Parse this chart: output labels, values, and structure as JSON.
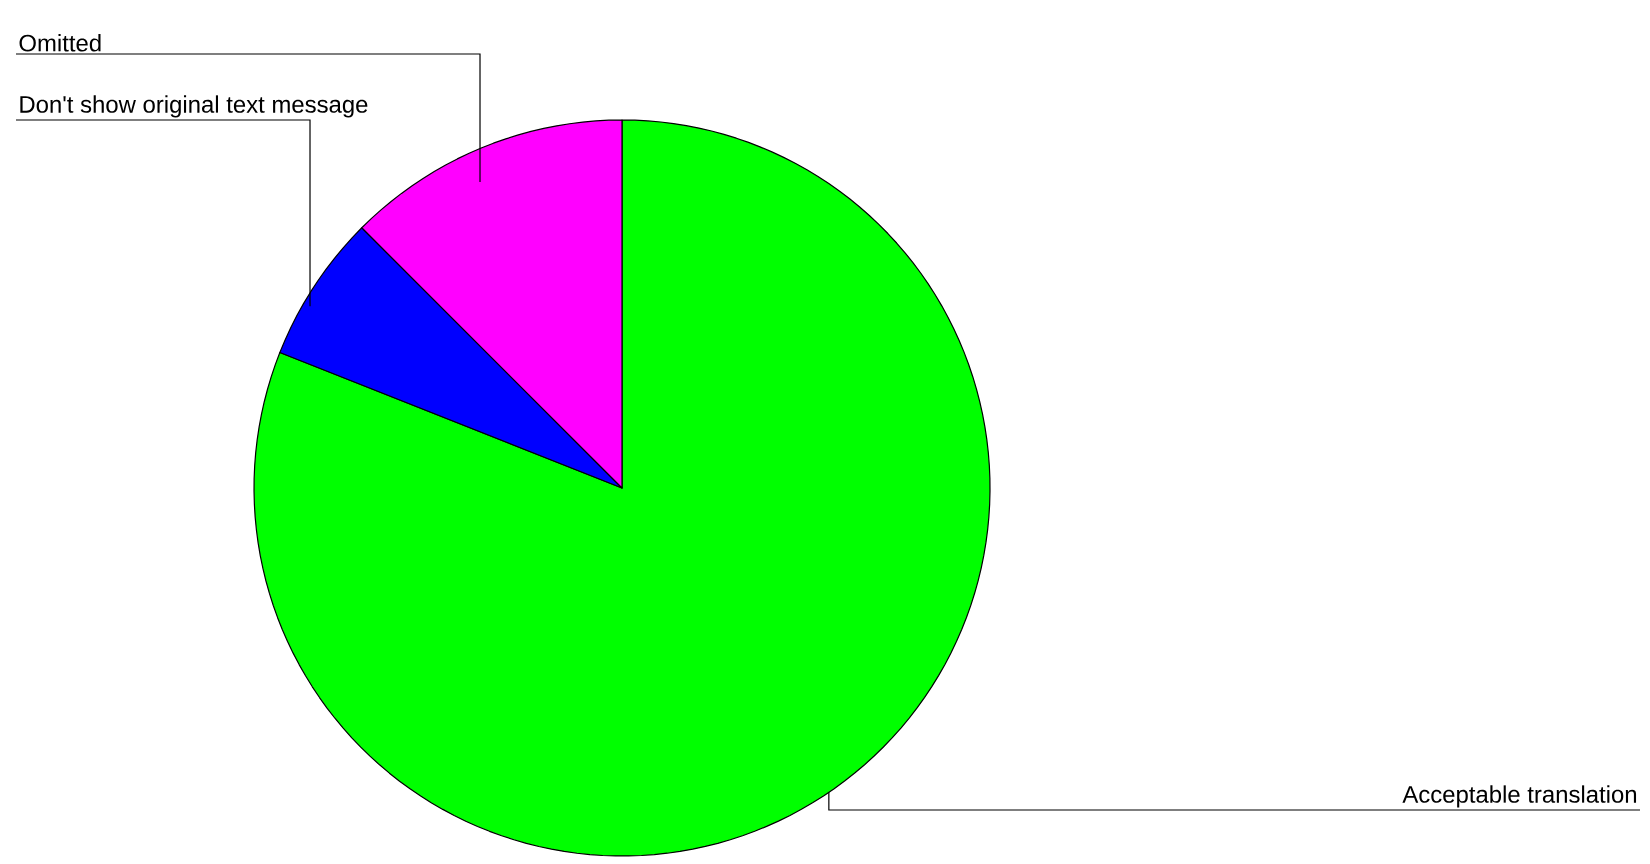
{
  "chart_data": {
    "type": "pie",
    "categories": [
      "Acceptable translation",
      "Don't show original text message",
      "Omitted"
    ],
    "values": [
      81,
      6.5,
      12.5
    ],
    "colors": [
      "#00ff00",
      "#0000ff",
      "#ff00ff"
    ]
  }
}
